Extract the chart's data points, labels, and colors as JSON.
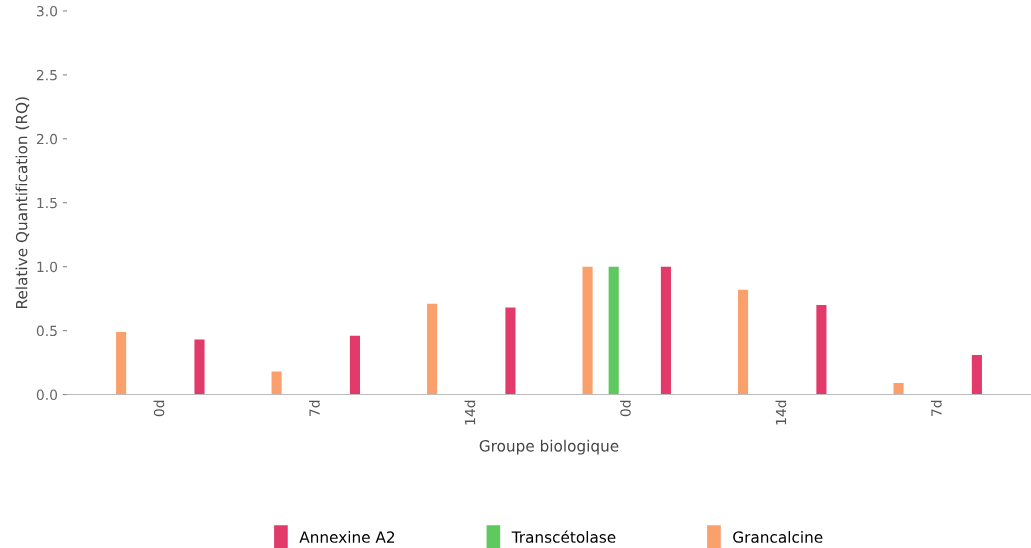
{
  "chart_data": {
    "type": "bar",
    "xlabel": "Groupe biologique",
    "ylabel": "Relative Quantification (RQ)",
    "categories": [
      "0d",
      "7d",
      "14d",
      "0d",
      "14d",
      "7d"
    ],
    "series": [
      {
        "name": "Annexine A2",
        "color": "#e23a6a",
        "values": [
          0.43,
          0.46,
          0.68,
          1.0,
          0.7,
          0.31
        ]
      },
      {
        "name": "Transcétolase",
        "color": "#5ec95e",
        "values": [
          null,
          null,
          null,
          1.0,
          null,
          null
        ]
      },
      {
        "name": "Grancalcine",
        "color": "#f9a06c",
        "values": [
          0.49,
          0.18,
          0.71,
          1.0,
          0.82,
          0.09
        ]
      }
    ],
    "ylim": [
      0,
      3.0
    ],
    "yticks": [
      {
        "value": 0,
        "label": "0.0"
      },
      {
        "value": 0.5,
        "label": "0.5"
      },
      {
        "value": 1.0,
        "label": "1.0"
      },
      {
        "value": 1.5,
        "label": "1.5"
      },
      {
        "value": 2.0,
        "label": "2.0"
      },
      {
        "value": 2.5,
        "label": "2.5"
      },
      {
        "value": 3.0,
        "label": "3.0"
      }
    ],
    "grid": false,
    "legend": "bottom"
  }
}
